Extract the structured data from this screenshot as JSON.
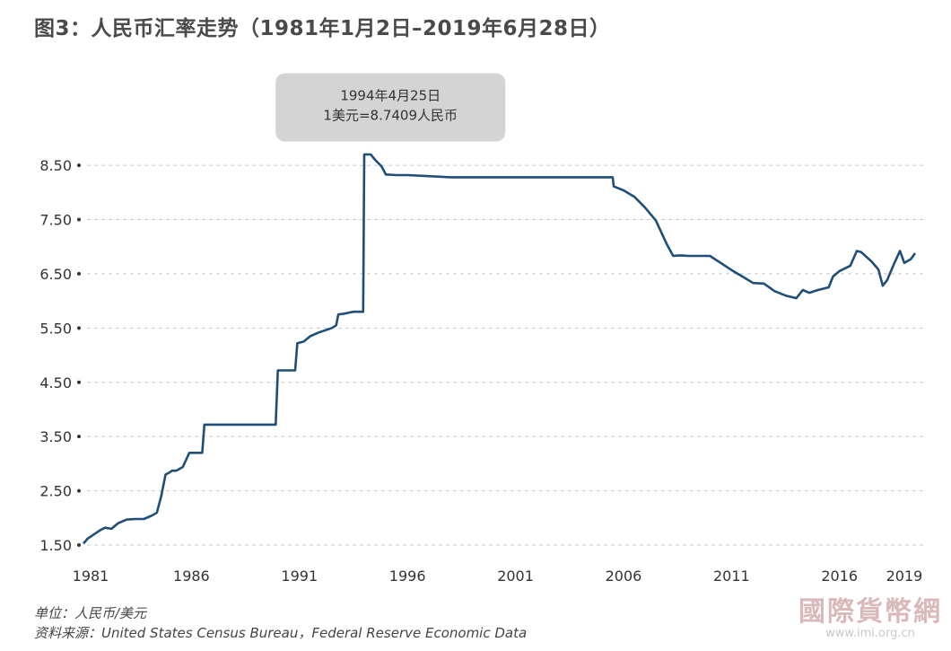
{
  "title": "图3：人民币汇率走势（1981年1月2日–2019年6月28日）",
  "footer": {
    "unit": "单位：人民币/美元",
    "source": "资料来源：United States Census Bureau，Federal Reserve Economic Data"
  },
  "watermark": {
    "main": "國際貨幣網",
    "url": "www.imi.org.cn"
  },
  "colors": {
    "line": "#1f4e79",
    "grid": "#c8c8c8",
    "callout_bg": "#d4d4d4"
  },
  "chart_data": {
    "type": "line",
    "title": "图3：人民币汇率走势（1981年1月2日–2019年6月28日）",
    "xlabel": "",
    "ylabel": "",
    "xlim": [
      1981,
      2019.5
    ],
    "ylim": [
      1.5,
      8.7
    ],
    "grid": "horizontal-dashed",
    "y_ticks": [
      1.5,
      2.5,
      3.5,
      4.5,
      5.5,
      6.5,
      7.5,
      8.5
    ],
    "y_tick_labels": [
      "1.50",
      "2.50",
      "3.50",
      "4.50",
      "5.50",
      "6.50",
      "7.50",
      "8.50"
    ],
    "x_ticks": [
      1981,
      1986,
      1991,
      1996,
      2001,
      2006,
      2011,
      2016,
      2019
    ],
    "x_tick_labels": [
      "1981",
      "1986",
      "1991",
      "1996",
      "2001",
      "2006",
      "2011",
      "2016",
      "2019"
    ],
    "annotation": {
      "line1": "1994年4月25日",
      "line2": "1美元=8.7409人民币",
      "x": 1994.3,
      "y": 8.74
    },
    "x": [
      1981.0,
      1981.2,
      1981.5,
      1981.8,
      1982.0,
      1982.3,
      1982.6,
      1983.0,
      1983.4,
      1983.8,
      1984.2,
      1984.4,
      1984.6,
      1984.8,
      1985.0,
      1985.1,
      1985.3,
      1985.6,
      1985.9,
      1986.0,
      1986.2,
      1986.5,
      1986.6,
      1987.0,
      1988.0,
      1989.0,
      1989.9,
      1990.0,
      1990.8,
      1990.9,
      1991.2,
      1991.5,
      1991.9,
      1992.2,
      1992.5,
      1992.7,
      1992.8,
      1993.0,
      1993.5,
      1993.95,
      1994.0,
      1994.3,
      1994.5,
      1994.8,
      1995.0,
      1995.1,
      1995.5,
      1996.0,
      1997.0,
      1998.0,
      1999.0,
      2000.0,
      2001.0,
      2002.0,
      2003.0,
      2004.0,
      2005.0,
      2005.5,
      2005.55,
      2006.0,
      2006.5,
      2007.0,
      2007.5,
      2008.0,
      2008.3,
      2008.6,
      2009.0,
      2010.0,
      2010.5,
      2011.0,
      2011.5,
      2012.0,
      2012.5,
      2013.0,
      2013.5,
      2014.0,
      2014.3,
      2014.6,
      2015.0,
      2015.5,
      2015.7,
      2016.0,
      2016.5,
      2016.8,
      2017.0,
      2017.5,
      2017.8,
      2018.0,
      2018.2,
      2018.5,
      2018.8,
      2019.0,
      2019.3,
      2019.5
    ],
    "y": [
      1.53,
      1.62,
      1.7,
      1.78,
      1.82,
      1.8,
      1.9,
      1.97,
      1.98,
      1.98,
      2.05,
      2.1,
      2.4,
      2.8,
      2.84,
      2.87,
      2.87,
      2.94,
      3.2,
      3.2,
      3.2,
      3.2,
      3.72,
      3.72,
      3.72,
      3.72,
      3.72,
      4.72,
      4.72,
      5.22,
      5.25,
      5.35,
      5.42,
      5.46,
      5.5,
      5.55,
      5.75,
      5.76,
      5.8,
      5.8,
      8.7,
      8.7,
      8.6,
      8.48,
      8.33,
      8.33,
      8.32,
      8.32,
      8.3,
      8.28,
      8.28,
      8.28,
      8.28,
      8.28,
      8.28,
      8.28,
      8.28,
      8.28,
      8.11,
      8.04,
      7.92,
      7.72,
      7.48,
      7.05,
      6.83,
      6.84,
      6.83,
      6.83,
      6.7,
      6.57,
      6.45,
      6.33,
      6.32,
      6.18,
      6.1,
      6.05,
      6.2,
      6.15,
      6.2,
      6.25,
      6.45,
      6.55,
      6.65,
      6.92,
      6.9,
      6.72,
      6.58,
      6.28,
      6.38,
      6.66,
      6.92,
      6.7,
      6.77,
      6.88
    ]
  }
}
